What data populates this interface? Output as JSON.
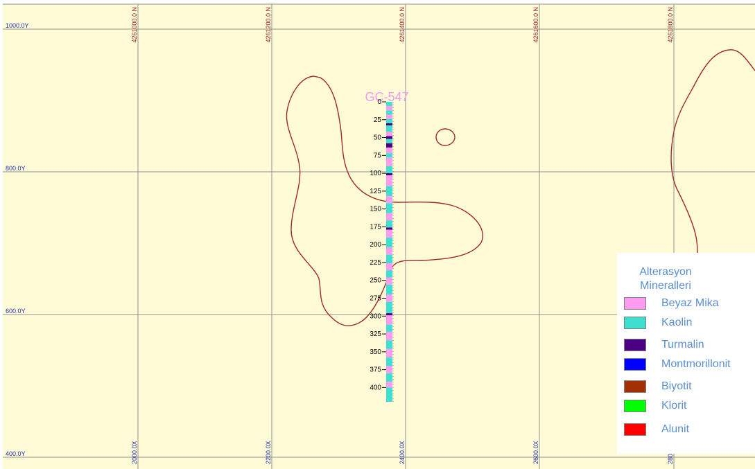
{
  "section": {
    "background": "#fffbd7",
    "grid_color": "#8f8f8f",
    "northing_labels": [
      "4261000.0 N",
      "4261200.0 N",
      "4261400.0 N",
      "4261600.0 N",
      "4261800.0 N"
    ],
    "easting_labels": [
      "2000.0X",
      "2200.0X",
      "2400.0X",
      "2600.0X",
      "2800."
    ],
    "elevation_labels": [
      "1000.0Y",
      "800.0Y",
      "600.0Y",
      "400.0Y"
    ],
    "north_label_color": "#9b1b1b",
    "elev_label_color": "#1a2fa8",
    "contour_color": "#9e2b24"
  },
  "drillhole": {
    "name": "GC-547",
    "name_color": "#f39af2",
    "depth_ticks": [
      "0",
      "25",
      "50",
      "75",
      "100",
      "125",
      "150",
      "175",
      "200",
      "225",
      "250",
      "275",
      "300",
      "325",
      "350",
      "375",
      "400"
    ],
    "max_depth": 420,
    "intervals": [
      {
        "from": 0,
        "to": 6,
        "mineral": "Kaolin"
      },
      {
        "from": 6,
        "to": 12,
        "mineral": "Beyaz Mika"
      },
      {
        "from": 12,
        "to": 18,
        "mineral": "Kaolin"
      },
      {
        "from": 18,
        "to": 24,
        "mineral": "Beyaz Mika"
      },
      {
        "from": 24,
        "to": 30,
        "mineral": "Kaolin"
      },
      {
        "from": 30,
        "to": 33,
        "mineral": "Turmalin"
      },
      {
        "from": 33,
        "to": 42,
        "mineral": "Kaolin"
      },
      {
        "from": 42,
        "to": 48,
        "mineral": "Beyaz Mika"
      },
      {
        "from": 48,
        "to": 52,
        "mineral": "Turmalin"
      },
      {
        "from": 52,
        "to": 58,
        "mineral": "Kaolin"
      },
      {
        "from": 58,
        "to": 64,
        "mineral": "Turmalin"
      },
      {
        "from": 64,
        "to": 72,
        "mineral": "Beyaz Mika"
      },
      {
        "from": 72,
        "to": 78,
        "mineral": "Kaolin"
      },
      {
        "from": 78,
        "to": 90,
        "mineral": "Beyaz Mika"
      },
      {
        "from": 90,
        "to": 100,
        "mineral": "Kaolin"
      },
      {
        "from": 100,
        "to": 103,
        "mineral": "Turmalin"
      },
      {
        "from": 103,
        "to": 118,
        "mineral": "Beyaz Mika"
      },
      {
        "from": 118,
        "to": 132,
        "mineral": "Kaolin"
      },
      {
        "from": 132,
        "to": 142,
        "mineral": "Beyaz Mika"
      },
      {
        "from": 142,
        "to": 156,
        "mineral": "Kaolin"
      },
      {
        "from": 156,
        "to": 166,
        "mineral": "Beyaz Mika"
      },
      {
        "from": 166,
        "to": 176,
        "mineral": "Kaolin"
      },
      {
        "from": 176,
        "to": 179,
        "mineral": "Turmalin"
      },
      {
        "from": 179,
        "to": 190,
        "mineral": "Beyaz Mika"
      },
      {
        "from": 190,
        "to": 204,
        "mineral": "Kaolin"
      },
      {
        "from": 204,
        "to": 214,
        "mineral": "Beyaz Mika"
      },
      {
        "from": 214,
        "to": 226,
        "mineral": "Kaolin"
      },
      {
        "from": 226,
        "to": 236,
        "mineral": "Beyaz Mika"
      },
      {
        "from": 236,
        "to": 246,
        "mineral": "Kaolin"
      },
      {
        "from": 246,
        "to": 256,
        "mineral": "Beyaz Mika"
      },
      {
        "from": 256,
        "to": 270,
        "mineral": "Kaolin"
      },
      {
        "from": 270,
        "to": 280,
        "mineral": "Beyaz Mika"
      },
      {
        "from": 280,
        "to": 296,
        "mineral": "Kaolin"
      },
      {
        "from": 296,
        "to": 299,
        "mineral": "Turmalin"
      },
      {
        "from": 299,
        "to": 312,
        "mineral": "Beyaz Mika"
      },
      {
        "from": 312,
        "to": 322,
        "mineral": "Kaolin"
      },
      {
        "from": 322,
        "to": 334,
        "mineral": "Beyaz Mika"
      },
      {
        "from": 334,
        "to": 346,
        "mineral": "Kaolin"
      },
      {
        "from": 346,
        "to": 358,
        "mineral": "Beyaz Mika"
      },
      {
        "from": 358,
        "to": 370,
        "mineral": "Kaolin"
      },
      {
        "from": 370,
        "to": 380,
        "mineral": "Beyaz Mika"
      },
      {
        "from": 380,
        "to": 392,
        "mineral": "Kaolin"
      },
      {
        "from": 392,
        "to": 400,
        "mineral": "Beyaz Mika"
      },
      {
        "from": 400,
        "to": 420,
        "mineral": "Kaolin"
      }
    ]
  },
  "legend": {
    "title_line1": "Alterasyon",
    "title_line2": "Mineralleri",
    "items": [
      {
        "label": "Beyaz Mika",
        "color": "#ff9cf2"
      },
      {
        "label": "Kaolin",
        "color": "#3fe0d0"
      },
      {
        "label": "Turmalin",
        "color": "#4b0082"
      },
      {
        "label": "Montmorillonit",
        "color": "#0000ff"
      },
      {
        "label": "Biyotit",
        "color": "#a33000"
      },
      {
        "label": "Klorit",
        "color": "#00ff00"
      },
      {
        "label": "Alunit",
        "color": "#ff0000"
      }
    ]
  }
}
